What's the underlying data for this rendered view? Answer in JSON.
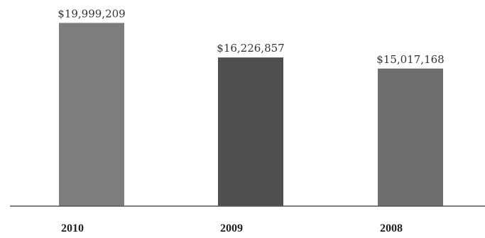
{
  "chart_data": {
    "type": "bar",
    "categories": [
      "2010",
      "2009",
      "2008"
    ],
    "values": [
      19999209,
      16226857,
      15017168
    ],
    "data_labels": [
      "$19,999,209",
      "$16,226,857",
      "$15,017,168"
    ],
    "title": "",
    "xlabel": "",
    "ylabel": "",
    "ylim": [
      0,
      20800000
    ],
    "grid": false,
    "legend": "none",
    "bar_colors": [
      "#7d7d7d",
      "#4f4f4f",
      "#6e6e6e"
    ],
    "axis_color": "#555555"
  }
}
